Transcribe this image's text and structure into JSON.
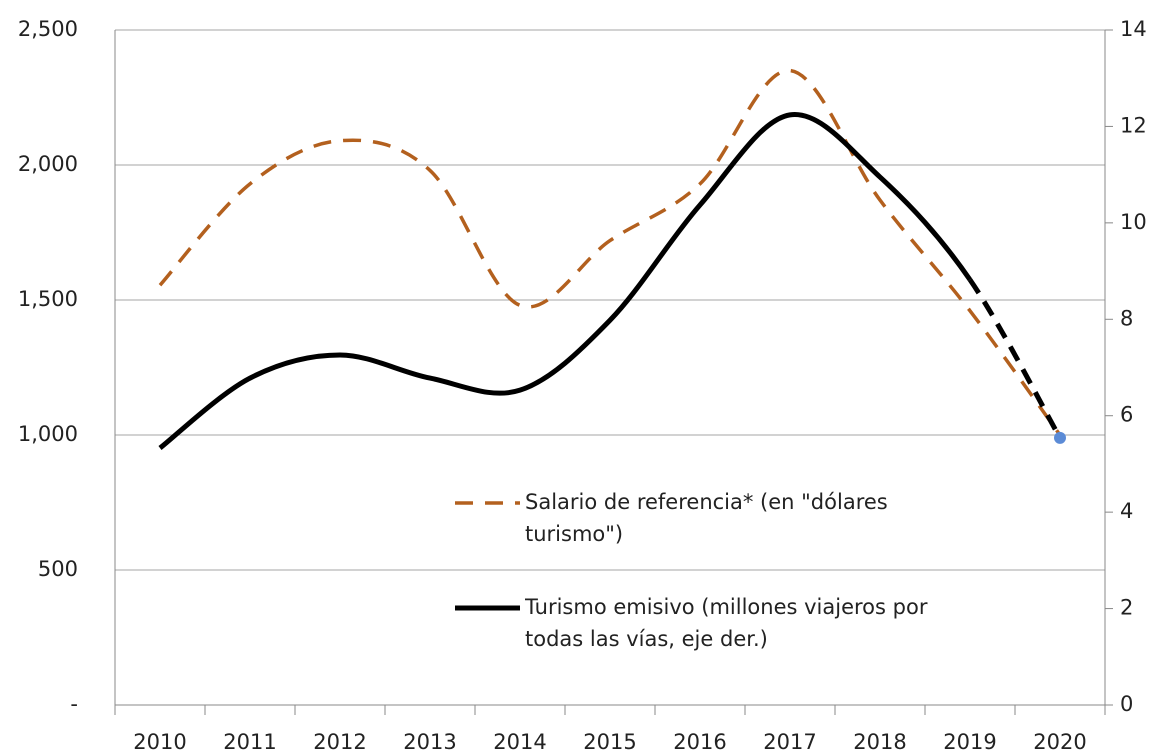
{
  "chart_data": {
    "type": "line",
    "categories": [
      "2010",
      "2011",
      "2012",
      "2013",
      "2014",
      "2015",
      "2016",
      "2017",
      "2018",
      "2019",
      "2020"
    ],
    "series": [
      {
        "name": "Salario de referencia* (en \"dólares turismo\")",
        "color": "#b3601e",
        "dashed": true,
        "axis": "y",
        "values": [
          1555,
          1930,
          2090,
          1980,
          1480,
          1720,
          1930,
          2350,
          1870,
          1460,
          1000
        ]
      },
      {
        "name": "Turismo emisivo (millones viajeros por todas las vías, eje der.)",
        "color": "#000000",
        "dashed": false,
        "axis": "y2",
        "projected_from_index": 9,
        "last_point_color": "#5b8bd6",
        "values": [
          5.33,
          6.78,
          7.26,
          6.78,
          6.53,
          7.98,
          10.37,
          12.24,
          10.95,
          8.82,
          5.54
        ]
      }
    ],
    "ylim": [
      0,
      2500
    ],
    "yticks": [
      {
        "value": 0,
        "label": "-"
      },
      500,
      {
        "value": 1000,
        "label": "1,000"
      },
      {
        "value": 1500,
        "label": "1,500"
      },
      {
        "value": 2000,
        "label": "2,000"
      },
      {
        "value": 2500,
        "label": "2,500"
      }
    ],
    "y2lim": [
      0,
      14
    ],
    "y2ticks": [
      0,
      2,
      4,
      6,
      8,
      10,
      12,
      14
    ],
    "grid": true,
    "smooth": true
  }
}
